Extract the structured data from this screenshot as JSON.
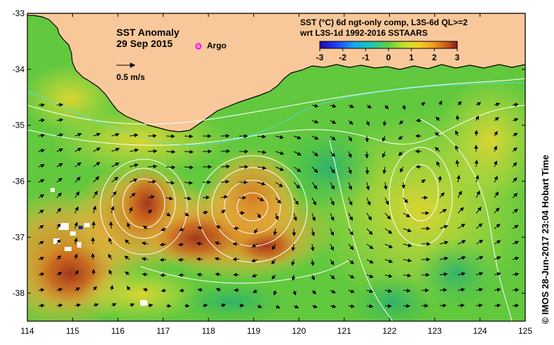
{
  "map": {
    "title": "SST Anomaly",
    "date": "29 Sep 2015",
    "argo_label": "Argo",
    "argo_color": "#ff00ff",
    "velocity_scale_label": "0.5 m/s",
    "legend": {
      "line1": "SST (°C) 6d ngt-only comp, L3S-6d QL>=2",
      "line2": "wrt L3S-1d 1992-2016 SSTAARS",
      "ticks": [
        "-3",
        "-2",
        "-1",
        "0",
        "1",
        "2",
        "3"
      ]
    },
    "credit": "©  IMOS 28-Jun-2017 23:04 Hobart Time",
    "lon_ticks": [
      "114",
      "115",
      "116",
      "117",
      "118",
      "119",
      "120",
      "121",
      "122",
      "123",
      "124",
      "125"
    ],
    "lat_ticks": [
      "-33",
      "-34",
      "-35",
      "-36",
      "-37",
      "-38"
    ],
    "lon_range": [
      114,
      125
    ],
    "lat_range": [
      -38.5,
      -33
    ],
    "colors": {
      "land": "#f8c89a",
      "coastline": "#000000",
      "contour": "#ffffff",
      "vector": "#000000"
    }
  }
}
